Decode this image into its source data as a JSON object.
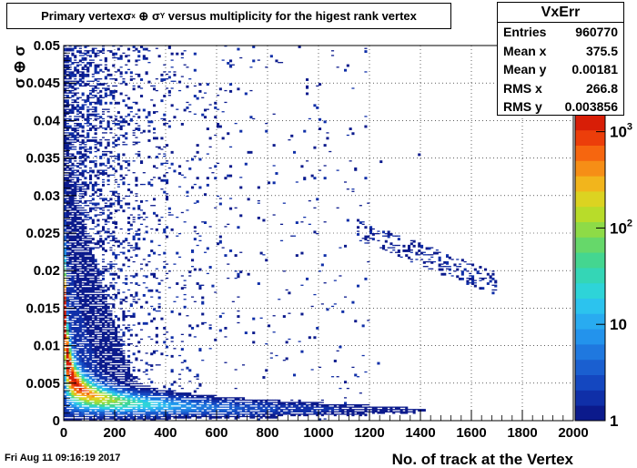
{
  "chart_data": {
    "type": "heatmap",
    "title_parts": {
      "pre": "Primary vertex ",
      "sx": "σ",
      "sx_sub": "x",
      "op": " ⊕ ",
      "sy": "σ",
      "sy_sub": "Y",
      "post": " versus multiplicity for the higest rank vertex"
    },
    "xlabel": "No. of track at the Vertex",
    "ylabel": "σ ⊕ σ",
    "xlim": [
      0,
      2000
    ],
    "ylim": [
      0,
      0.05
    ],
    "x_ticks": [
      "0",
      "200",
      "400",
      "600",
      "800",
      "1000",
      "1200",
      "1400",
      "1600",
      "1800",
      "2000"
    ],
    "y_ticks": [
      "0",
      "0.005",
      "0.01",
      "0.015",
      "0.02",
      "0.025",
      "0.03",
      "0.035",
      "0.04",
      "0.045",
      "0.05"
    ],
    "color_scale": "log",
    "z_ticks": [
      {
        "base": "1",
        "exp": "",
        "value": 1
      },
      {
        "base": "10",
        "exp": "",
        "value": 10
      },
      {
        "base": "10",
        "exp": "2",
        "value": 100
      },
      {
        "base": "10",
        "exp": "3",
        "value": 1000
      }
    ],
    "grid": true,
    "palette": [
      "#0b1a8c",
      "#0f2fa8",
      "#1447c0",
      "#1a5fd0",
      "#1f78df",
      "#2393ec",
      "#29abf0",
      "#2cc3ee",
      "#2ed4d8",
      "#34d6b6",
      "#44d690",
      "#66d86a",
      "#8edb47",
      "#b8dc2a",
      "#dcd321",
      "#f2b51c",
      "#f68e16",
      "#f6660f",
      "#ec3e0a",
      "#d81e07"
    ]
  },
  "stats": {
    "name": "VxErr",
    "rows": [
      {
        "label": "Entries",
        "value": "960770"
      },
      {
        "label": "Mean x",
        "value": "375.5"
      },
      {
        "label": "Mean y",
        "value": "0.00181"
      },
      {
        "label": "RMS x",
        "value": "266.8"
      },
      {
        "label": "RMS y",
        "value": "0.003856"
      }
    ]
  },
  "timestamp": "Fri Aug 11 09:16:19 2017"
}
